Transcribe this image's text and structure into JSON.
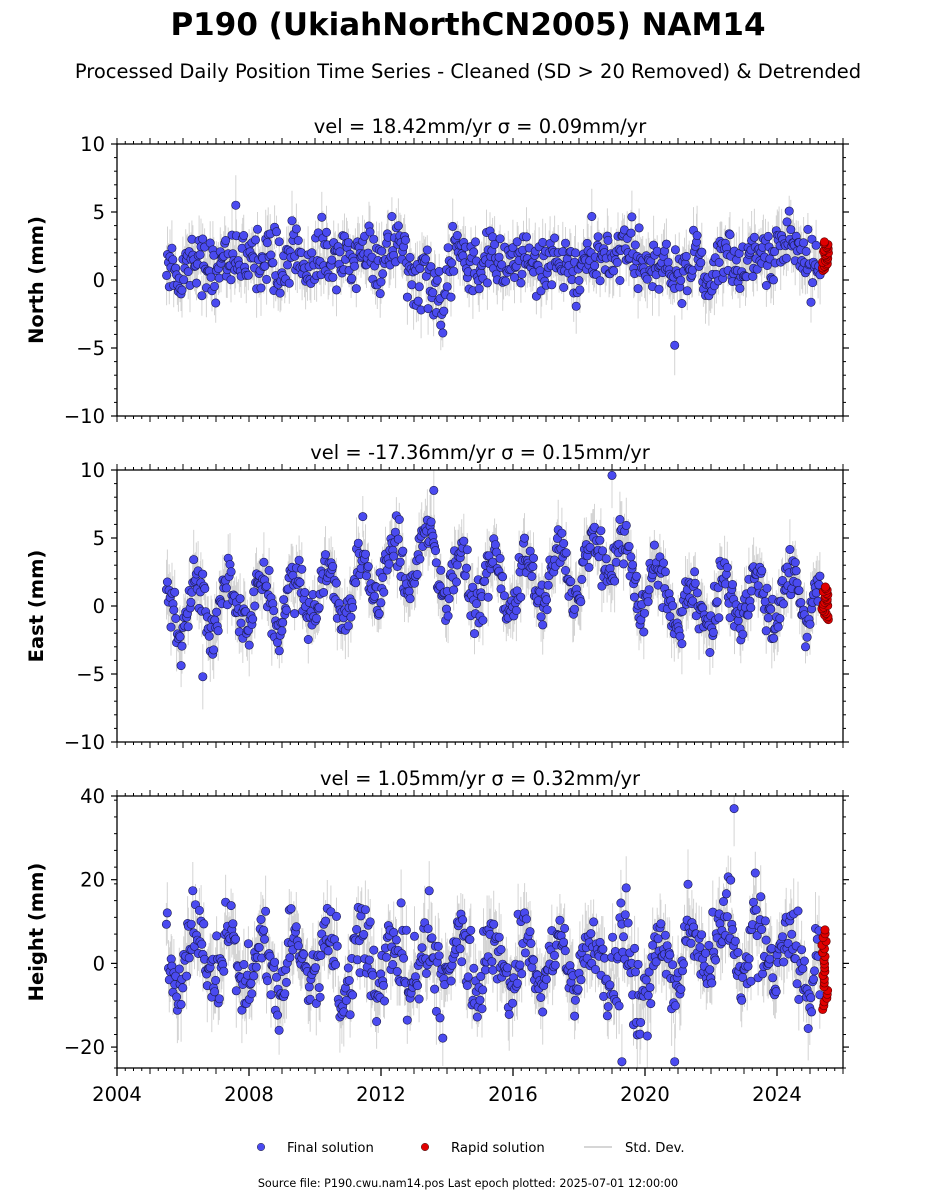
{
  "figure": {
    "title": "P190 (UkiahNorthCN2005) NAM14",
    "subtitle": "Processed Daily Position Time Series - Cleaned (SD > 20 Removed) & Detrended",
    "footer": "Source file: P190.cwu.nam14.pos  Last epoch plotted: 2025-07-01 12:00:00"
  },
  "legend": {
    "placement": "bottom-center",
    "items": [
      {
        "label": "Final solution",
        "color": "#4a4af0",
        "marker": "circle"
      },
      {
        "label": "Rapid solution",
        "color": "#e00000",
        "marker": "circle"
      },
      {
        "label": "Std. Dev.",
        "color": "#c8c8c8",
        "marker": "line"
      }
    ]
  },
  "colors": {
    "final": "#4a4af0",
    "rapid": "#e00000",
    "stddev": "#a0a0a0",
    "edge": "#1a1a4a"
  },
  "chart_data": [
    {
      "type": "scatter",
      "panel_title": "vel = 18.42mm/yr   σ = 0.09mm/yr",
      "ylabel": "North (mm)",
      "xlim": [
        2004.0,
        2026.0
      ],
      "ylim": [
        -10,
        10
      ],
      "yticks": [
        -10,
        -5,
        0,
        5,
        10
      ],
      "ytick_labels": [
        "−10",
        "−5",
        "0",
        "5",
        "10"
      ],
      "xtick_labels_shown": false,
      "final_span": [
        2005.5,
        2025.3
      ],
      "rapid_span": [
        2025.3,
        2025.5
      ],
      "trend_knots": [
        [
          2005.5,
          1.0
        ],
        [
          2008.0,
          1.5
        ],
        [
          2010.5,
          1.5
        ],
        [
          2012.7,
          2.0
        ],
        [
          2013.3,
          -0.5
        ],
        [
          2013.9,
          -1.5
        ],
        [
          2014.2,
          1.5
        ],
        [
          2016.0,
          1.2
        ],
        [
          2018.0,
          1.0
        ],
        [
          2019.2,
          2.0
        ],
        [
          2020.5,
          0.5
        ],
        [
          2022.0,
          1.0
        ],
        [
          2024.5,
          2.5
        ],
        [
          2025.3,
          1.5
        ]
      ],
      "seasonal_amplitude": 0.6,
      "scatter_sd": 1.1,
      "sigma_range": [
        1.0,
        2.2
      ],
      "rapid_range": [
        0.7,
        2.8
      ],
      "outliers": [
        {
          "x": 2020.9,
          "y": -4.8
        },
        {
          "x": 2007.6,
          "y": 5.5
        }
      ]
    },
    {
      "type": "scatter",
      "panel_title": "vel = -17.36mm/yr   σ = 0.15mm/yr",
      "ylabel": "East (mm)",
      "xlim": [
        2004.0,
        2026.0
      ],
      "ylim": [
        -10,
        10
      ],
      "yticks": [
        -10,
        -5,
        0,
        5,
        10
      ],
      "ytick_labels": [
        "−10",
        "−5",
        "0",
        "5",
        "10"
      ],
      "xtick_labels_shown": false,
      "final_span": [
        2005.5,
        2025.3
      ],
      "rapid_span": [
        2025.3,
        2025.5
      ],
      "trend_knots": [
        [
          2005.5,
          0.0
        ],
        [
          2008.0,
          0.0
        ],
        [
          2011.0,
          1.0
        ],
        [
          2012.5,
          3.0
        ],
        [
          2013.5,
          4.0
        ],
        [
          2014.3,
          1.5
        ],
        [
          2016.0,
          1.5
        ],
        [
          2018.0,
          2.5
        ],
        [
          2019.0,
          4.5
        ],
        [
          2019.8,
          2.0
        ],
        [
          2021.0,
          0.0
        ],
        [
          2023.0,
          0.5
        ],
        [
          2025.3,
          0.5
        ]
      ],
      "seasonal_amplitude": 1.9,
      "scatter_sd": 0.9,
      "sigma_range": [
        1.0,
        2.4
      ],
      "rapid_range": [
        -1.0,
        1.4
      ],
      "outliers": [
        {
          "x": 2019.0,
          "y": 9.6
        },
        {
          "x": 2013.6,
          "y": 8.5
        },
        {
          "x": 2006.6,
          "y": -5.2
        }
      ]
    },
    {
      "type": "scatter",
      "panel_title": "vel = 1.05mm/yr   σ = 0.32mm/yr",
      "ylabel": "Height (mm)",
      "xlim": [
        2004.0,
        2026.0
      ],
      "ylim": [
        -25,
        40
      ],
      "yticks": [
        -20,
        0,
        20,
        40
      ],
      "ytick_labels": [
        "−20",
        "0",
        "20",
        "40"
      ],
      "xticks": [
        2004,
        2008,
        2012,
        2016,
        2020,
        2024
      ],
      "xtick_labels": [
        "2004",
        "2008",
        "2012",
        "2016",
        "2020",
        "2024"
      ],
      "xtick_labels_shown": true,
      "final_span": [
        2005.5,
        2025.3
      ],
      "rapid_span": [
        2025.3,
        2025.5
      ],
      "trend_knots": [
        [
          2005.5,
          0.0
        ],
        [
          2012.0,
          0.0
        ],
        [
          2016.0,
          0.0
        ],
        [
          2019.0,
          0.0
        ],
        [
          2020.0,
          -4.0
        ],
        [
          2021.0,
          2.0
        ],
        [
          2022.5,
          5.0
        ],
        [
          2023.5,
          2.0
        ],
        [
          2025.3,
          0.0
        ]
      ],
      "seasonal_amplitude": 6.5,
      "scatter_sd": 4.5,
      "sigma_range": [
        4.0,
        9.0
      ],
      "rapid_range": [
        -11.0,
        8.0
      ],
      "outliers": [
        {
          "x": 2022.7,
          "y": 37.0
        },
        {
          "x": 2019.3,
          "y": -23.5
        },
        {
          "x": 2020.9,
          "y": -23.5
        }
      ]
    }
  ]
}
